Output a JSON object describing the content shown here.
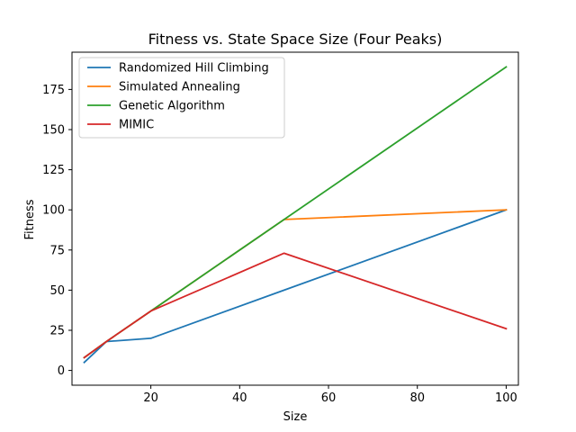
{
  "chart_data": {
    "type": "line",
    "title": "Fitness vs. State Space Size (Four Peaks)",
    "xlabel": "Size",
    "ylabel": "Fitness",
    "xlim": [
      2.25,
      102.75
    ],
    "ylim": [
      -9.2,
      198.2
    ],
    "xticks": [
      20,
      40,
      60,
      80,
      100
    ],
    "yticks": [
      0,
      25,
      50,
      75,
      100,
      125,
      150,
      175
    ],
    "grid": false,
    "legend_position": "top-left",
    "x": [
      5,
      10,
      20,
      50,
      100
    ],
    "series": [
      {
        "name": "Randomized Hill Climbing",
        "color": "#1f77b4",
        "values": [
          5,
          18,
          20,
          50,
          100
        ]
      },
      {
        "name": "Simulated Annealing",
        "color": "#ff7f0e",
        "values": [
          8,
          18,
          37,
          94,
          100
        ]
      },
      {
        "name": "Genetic Algorithm",
        "color": "#2ca02c",
        "values": [
          8,
          18,
          37,
          94,
          189
        ]
      },
      {
        "name": "MIMIC",
        "color": "#d62728",
        "values": [
          8,
          18,
          37,
          73,
          26
        ]
      }
    ]
  }
}
